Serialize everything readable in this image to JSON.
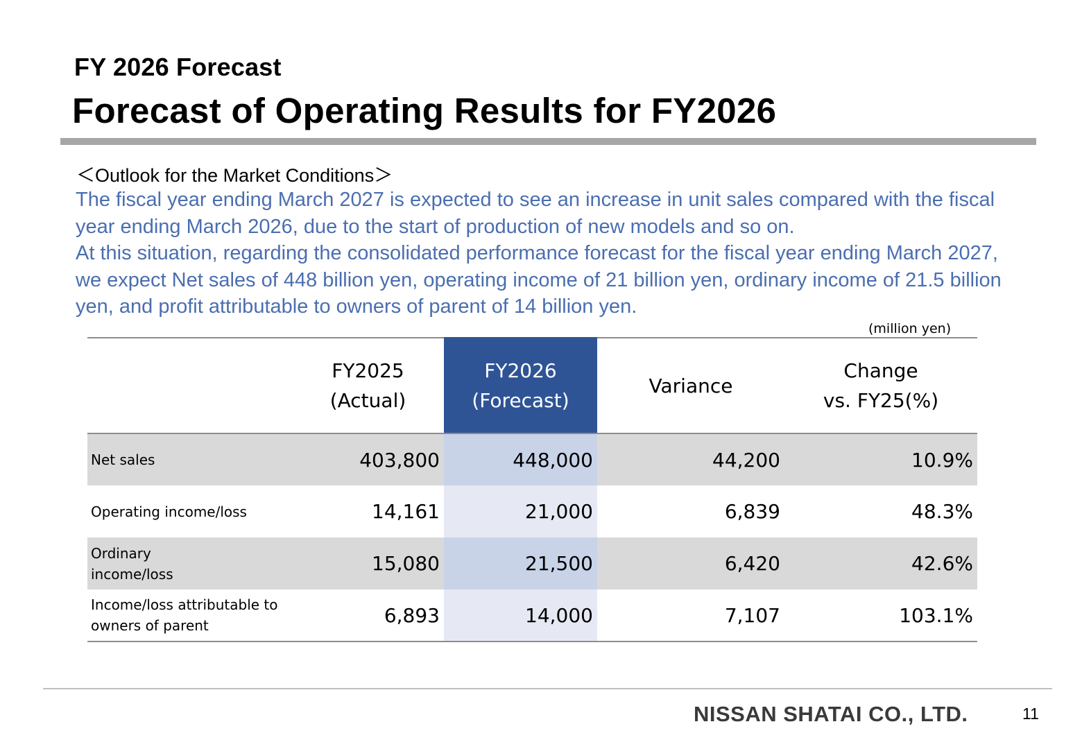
{
  "header": {
    "subtitle": "FY 2026 Forecast",
    "title": "Forecast of Operating Results for FY2026"
  },
  "outlook": {
    "heading": "＜Outlook for the Market Conditions＞",
    "paragraph1": "The fiscal year ending March 2027 is expected to see an increase in unit sales compared with the fiscal year ending March 2026, due to the start of production of new models and so on.",
    "paragraph2": "At this situation, regarding the consolidated performance forecast for the fiscal year ending March 2027, we expect Net sales of 448 billion yen, operating income of 21 billion yen, ordinary income of 21.5 billion yen, and profit attributable to owners of parent of 14 billion yen."
  },
  "table": {
    "unit_note": "(million yen)",
    "columns": [
      {
        "line1": "FY2025",
        "line2": "(Actual)"
      },
      {
        "line1": "FY2026",
        "line2": "(Forecast)"
      },
      {
        "line1": "Variance",
        "line2": ""
      },
      {
        "line1": "Change",
        "line2": "vs. FY25(%)"
      }
    ],
    "rows": [
      {
        "label": "Net sales",
        "fy2025": "403,800",
        "fy2026": "448,000",
        "variance": "44,200",
        "change": "10.9%"
      },
      {
        "label": "Operating income/loss",
        "fy2025": "14,161",
        "fy2026": "21,000",
        "variance": "6,839",
        "change": "48.3%"
      },
      {
        "label": "Ordinary income/loss",
        "fy2025": "15,080",
        "fy2026": "21,500",
        "variance": "6,420",
        "change": "42.6%"
      },
      {
        "label": "Income/loss attributable to owners of parent",
        "fy2025": "6,893",
        "fy2026": "14,000",
        "variance": "7,107",
        "change": "103.1%"
      }
    ]
  },
  "footer": {
    "company": "NISSAN SHATAI CO., LTD.",
    "page_number": "11"
  },
  "colors": {
    "accent_blue": "#2f5496",
    "outlook_text": "#4a6eb0",
    "row_shade": "#d9d9d9",
    "rule_gray": "#a6a6a6"
  }
}
